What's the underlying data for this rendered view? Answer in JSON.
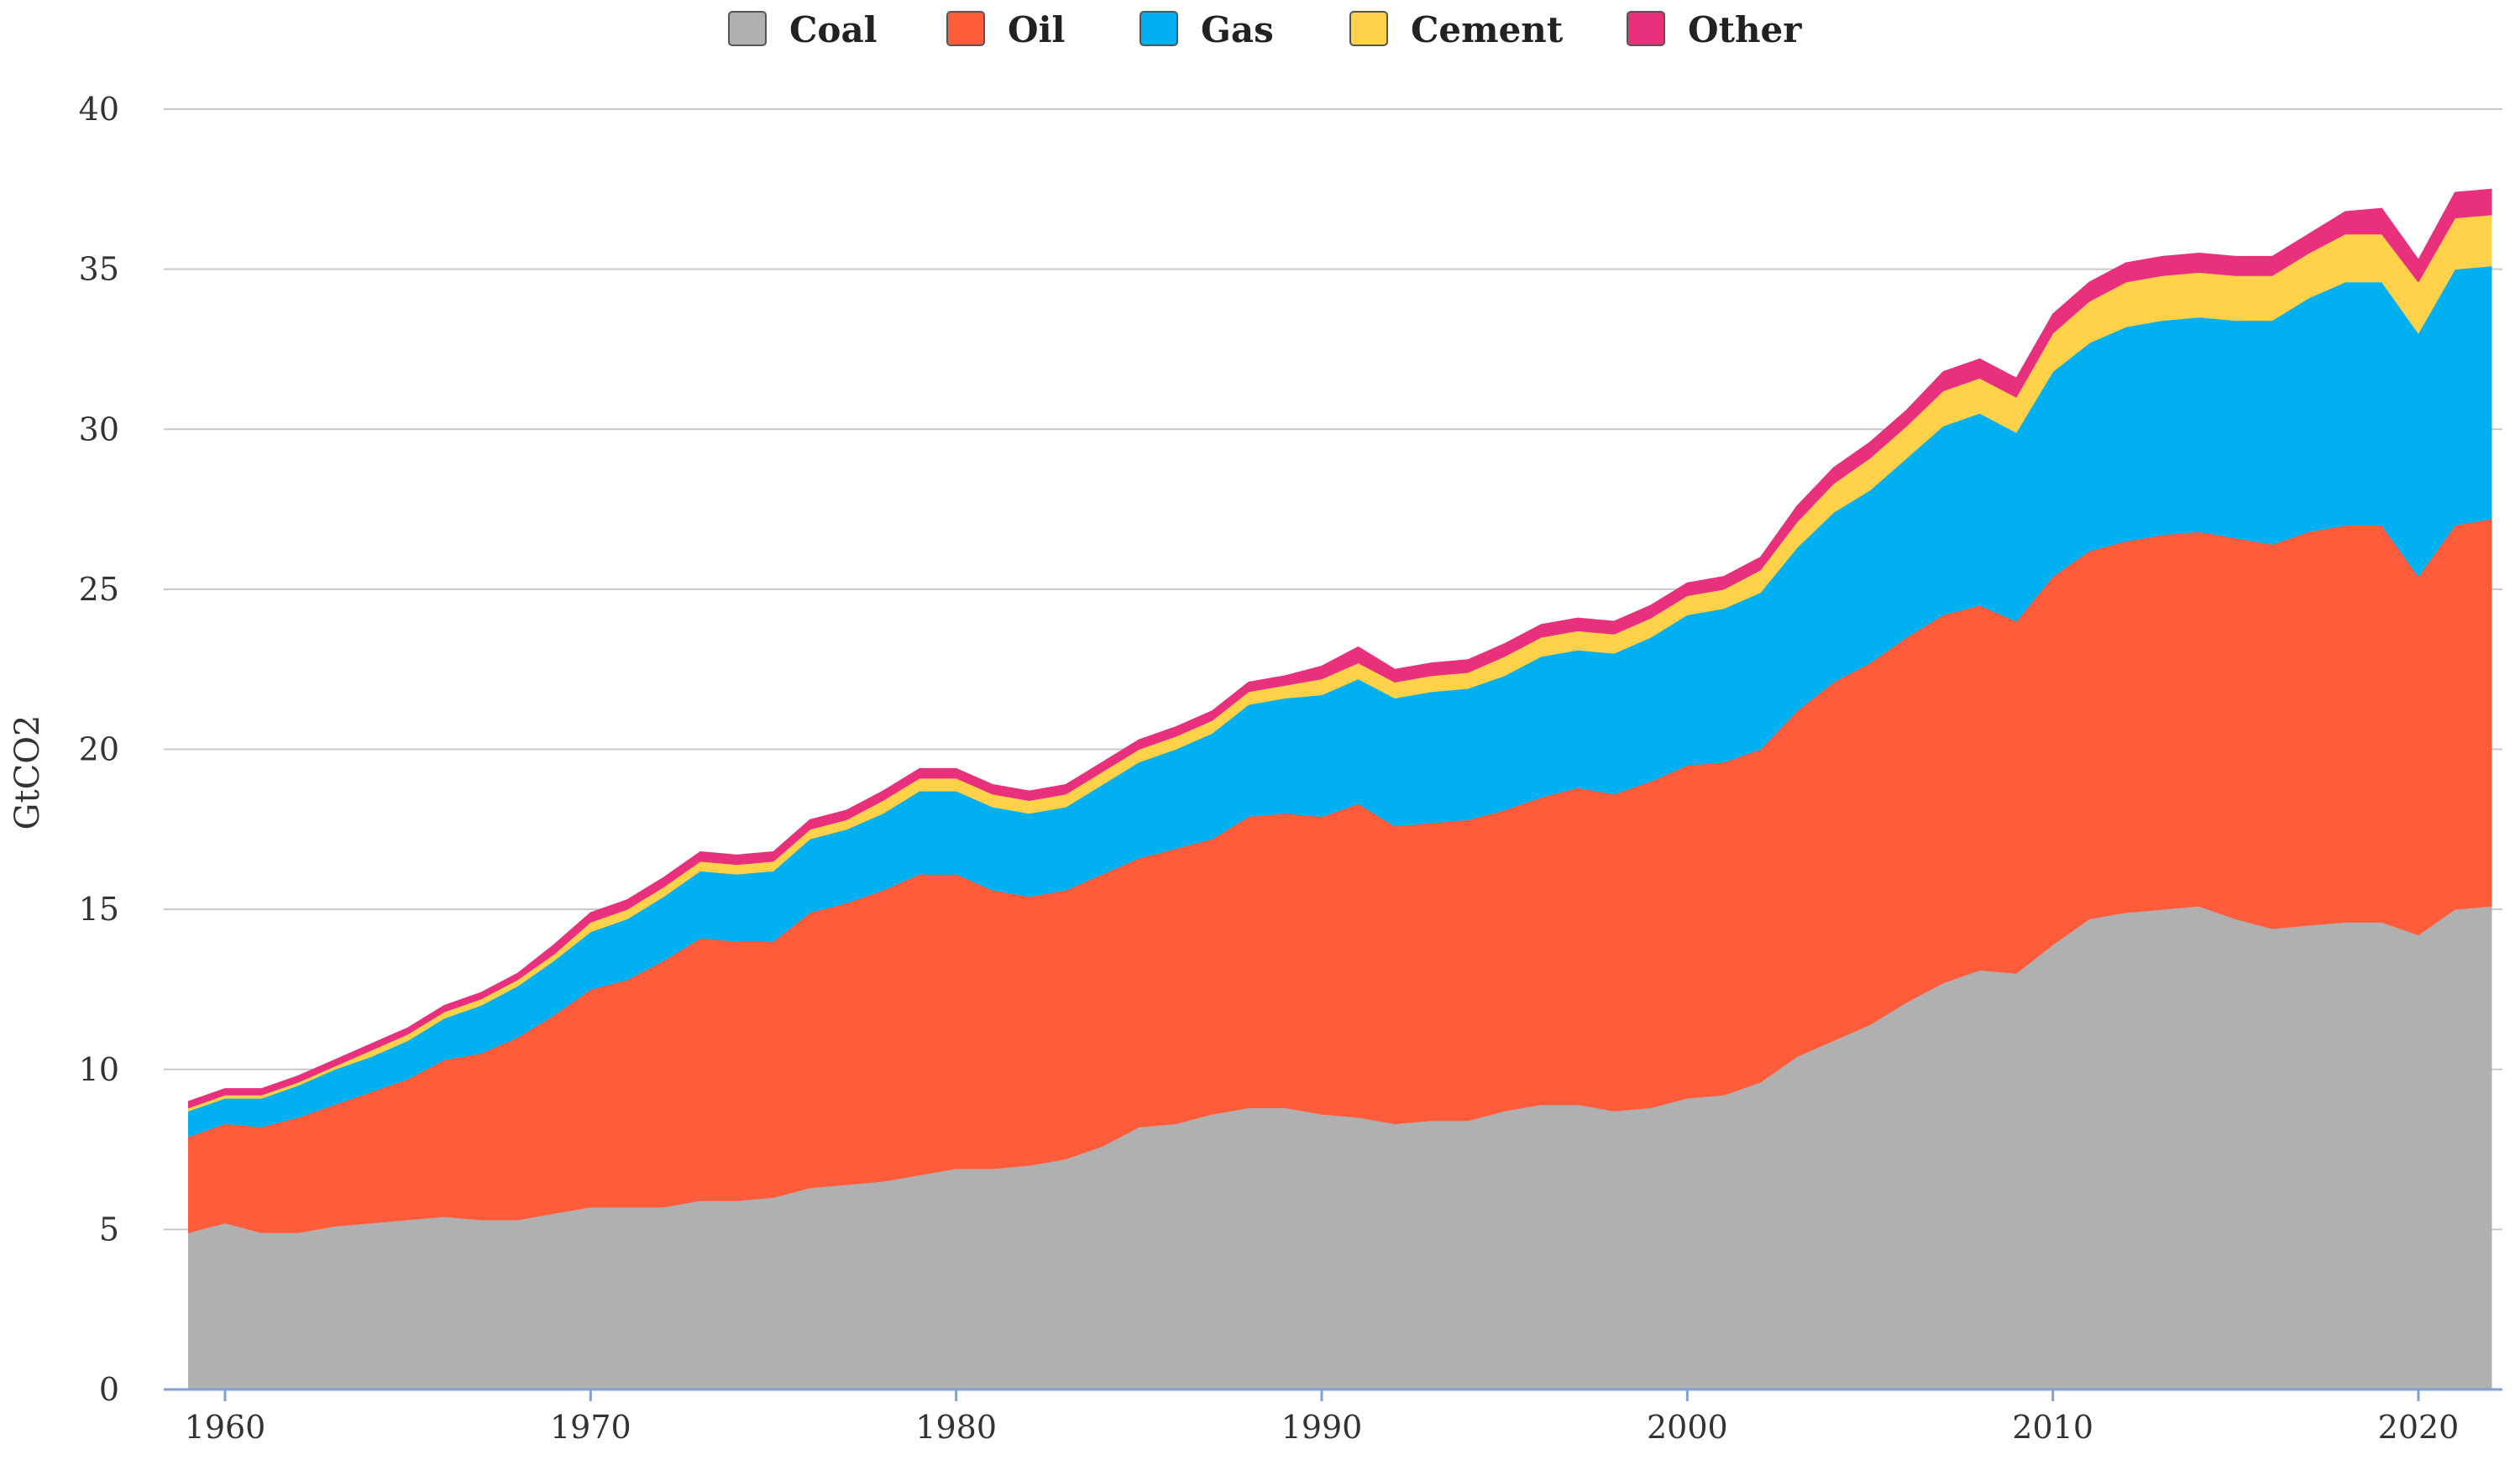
{
  "chart_data": {
    "type": "area",
    "stacked": true,
    "title": "",
    "xlabel": "",
    "ylabel": "GtCO2",
    "ylim": [
      0,
      40
    ],
    "xlim": [
      1959,
      2022
    ],
    "grid": true,
    "legend_position": "top-center",
    "y_ticks": [
      "0",
      "5",
      "10",
      "15",
      "20",
      "25",
      "30",
      "35",
      "40"
    ],
    "x_ticks": [
      "1960",
      "1970",
      "1980",
      "1990",
      "2000",
      "2010",
      "2020"
    ],
    "x": [
      1959,
      1960,
      1961,
      1962,
      1963,
      1964,
      1965,
      1966,
      1967,
      1968,
      1969,
      1970,
      1971,
      1972,
      1973,
      1974,
      1975,
      1976,
      1977,
      1978,
      1979,
      1980,
      1981,
      1982,
      1983,
      1984,
      1985,
      1986,
      1987,
      1988,
      1989,
      1990,
      1991,
      1992,
      1993,
      1994,
      1995,
      1996,
      1997,
      1998,
      1999,
      2000,
      2001,
      2002,
      2003,
      2004,
      2005,
      2006,
      2007,
      2008,
      2009,
      2010,
      2011,
      2012,
      2013,
      2014,
      2015,
      2016,
      2017,
      2018,
      2019,
      2020,
      2021,
      2022
    ],
    "series": [
      {
        "name": "Coal",
        "color": "#b0b0b0",
        "values": [
          4.9,
          5.2,
          4.9,
          4.9,
          5.1,
          5.2,
          5.3,
          5.4,
          5.3,
          5.3,
          5.5,
          5.7,
          5.7,
          5.7,
          5.9,
          5.9,
          6.0,
          6.3,
          6.4,
          6.5,
          6.7,
          6.9,
          6.9,
          7.0,
          7.2,
          7.6,
          8.2,
          8.3,
          8.6,
          8.8,
          8.8,
          8.6,
          8.5,
          8.3,
          8.4,
          8.4,
          8.7,
          8.9,
          8.9,
          8.7,
          8.8,
          9.1,
          9.2,
          9.6,
          10.4,
          10.9,
          11.4,
          12.1,
          12.7,
          13.1,
          13.0,
          13.9,
          14.7,
          14.9,
          15.0,
          15.1,
          14.7,
          14.4,
          14.5,
          14.6,
          14.6,
          14.2,
          15.0,
          15.1
        ]
      },
      {
        "name": "Oil",
        "color": "#ff5c3c",
        "values": [
          3.0,
          3.1,
          3.3,
          3.6,
          3.8,
          4.1,
          4.4,
          4.9,
          5.2,
          5.7,
          6.2,
          6.8,
          7.1,
          7.7,
          8.2,
          8.1,
          8.0,
          8.6,
          8.8,
          9.1,
          9.4,
          9.2,
          8.7,
          8.4,
          8.4,
          8.5,
          8.4,
          8.6,
          8.6,
          9.1,
          9.2,
          9.3,
          9.8,
          9.3,
          9.3,
          9.4,
          9.4,
          9.6,
          9.9,
          9.9,
          10.2,
          10.4,
          10.4,
          10.4,
          10.8,
          11.2,
          11.3,
          11.4,
          11.5,
          11.4,
          11.0,
          11.5,
          11.5,
          11.6,
          11.7,
          11.7,
          11.9,
          12.0,
          12.3,
          12.4,
          12.4,
          11.2,
          12.0,
          12.1
        ]
      },
      {
        "name": "Gas",
        "color": "#00b0f0",
        "values": [
          0.8,
          0.8,
          0.9,
          1.0,
          1.1,
          1.1,
          1.2,
          1.3,
          1.5,
          1.6,
          1.7,
          1.8,
          1.9,
          2.0,
          2.1,
          2.1,
          2.2,
          2.3,
          2.3,
          2.4,
          2.6,
          2.6,
          2.6,
          2.6,
          2.6,
          2.8,
          3.0,
          3.1,
          3.3,
          3.5,
          3.6,
          3.8,
          3.9,
          4.0,
          4.1,
          4.1,
          4.2,
          4.4,
          4.3,
          4.4,
          4.5,
          4.7,
          4.8,
          4.9,
          5.1,
          5.3,
          5.4,
          5.6,
          5.9,
          6.0,
          5.9,
          6.4,
          6.5,
          6.7,
          6.7,
          6.7,
          6.8,
          7.0,
          7.3,
          7.6,
          7.6,
          7.6,
          8.0,
          7.9
        ]
      },
      {
        "name": "Cement",
        "color": "#ffd24a",
        "values": [
          0.1,
          0.1,
          0.1,
          0.1,
          0.1,
          0.2,
          0.2,
          0.2,
          0.2,
          0.2,
          0.2,
          0.3,
          0.3,
          0.3,
          0.3,
          0.3,
          0.3,
          0.3,
          0.3,
          0.4,
          0.4,
          0.4,
          0.4,
          0.4,
          0.4,
          0.4,
          0.4,
          0.4,
          0.4,
          0.4,
          0.4,
          0.5,
          0.5,
          0.5,
          0.5,
          0.5,
          0.6,
          0.6,
          0.6,
          0.6,
          0.6,
          0.6,
          0.6,
          0.7,
          0.8,
          0.9,
          1.0,
          1.0,
          1.1,
          1.1,
          1.1,
          1.2,
          1.3,
          1.4,
          1.4,
          1.4,
          1.4,
          1.4,
          1.4,
          1.5,
          1.5,
          1.6,
          1.6,
          1.6
        ]
      },
      {
        "name": "Other",
        "color": "#e8307d",
        "values": [
          0.2,
          0.2,
          0.2,
          0.2,
          0.2,
          0.2,
          0.2,
          0.2,
          0.2,
          0.2,
          0.3,
          0.3,
          0.3,
          0.3,
          0.3,
          0.3,
          0.3,
          0.3,
          0.3,
          0.3,
          0.3,
          0.3,
          0.3,
          0.3,
          0.3,
          0.3,
          0.3,
          0.3,
          0.3,
          0.3,
          0.3,
          0.4,
          0.5,
          0.4,
          0.4,
          0.4,
          0.4,
          0.4,
          0.4,
          0.4,
          0.4,
          0.4,
          0.4,
          0.4,
          0.5,
          0.5,
          0.5,
          0.5,
          0.6,
          0.6,
          0.6,
          0.6,
          0.6,
          0.6,
          0.6,
          0.6,
          0.6,
          0.6,
          0.6,
          0.7,
          0.8,
          0.7,
          0.8,
          0.8
        ]
      }
    ]
  }
}
